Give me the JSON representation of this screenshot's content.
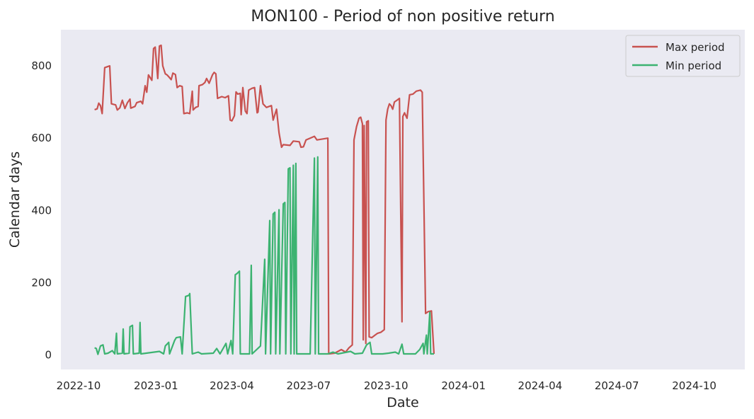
{
  "chart_data": {
    "type": "line",
    "title": "MON100 - Period of non positive return",
    "xlabel": "Date",
    "ylabel": "Calendar days",
    "x_ticks": [
      "2022-10",
      "2023-01",
      "2023-04",
      "2023-07",
      "2023-10",
      "2024-01",
      "2024-04",
      "2024-07",
      "2024-10"
    ],
    "y_ticks": [
      "0",
      "200",
      "400",
      "600",
      "800"
    ],
    "xlim": [
      "2022-09-10",
      "2024-11-30"
    ],
    "ylim": [
      -40,
      900
    ],
    "grid": false,
    "legend": "top-right",
    "series": [
      {
        "name": "Max period",
        "color": "#c85250",
        "points": [
          [
            "2022-10-20",
            679
          ],
          [
            "2022-10-23",
            681
          ],
          [
            "2022-10-25",
            697
          ],
          [
            "2022-10-27",
            690
          ],
          [
            "2022-10-29",
            668
          ],
          [
            "2022-11-01",
            795
          ],
          [
            "2022-11-07",
            800
          ],
          [
            "2022-11-09",
            695
          ],
          [
            "2022-11-14",
            692
          ],
          [
            "2022-11-16",
            678
          ],
          [
            "2022-11-19",
            684
          ],
          [
            "2022-11-22",
            705
          ],
          [
            "2022-11-25",
            682
          ],
          [
            "2022-11-28",
            698
          ],
          [
            "2022-12-01",
            708
          ],
          [
            "2022-12-02",
            683
          ],
          [
            "2022-12-07",
            688
          ],
          [
            "2022-12-09",
            698
          ],
          [
            "2022-12-14",
            702
          ],
          [
            "2022-12-16",
            695
          ],
          [
            "2022-12-19",
            745
          ],
          [
            "2022-12-21",
            727
          ],
          [
            "2022-12-23",
            775
          ],
          [
            "2022-12-27",
            760
          ],
          [
            "2022-12-29",
            848
          ],
          [
            "2022-12-31",
            852
          ],
          [
            "2023-01-03",
            765
          ],
          [
            "2023-01-05",
            855
          ],
          [
            "2023-01-07",
            857
          ],
          [
            "2023-01-09",
            800
          ],
          [
            "2023-01-12",
            778
          ],
          [
            "2023-01-14",
            775
          ],
          [
            "2023-01-16",
            770
          ],
          [
            "2023-01-19",
            762
          ],
          [
            "2023-01-21",
            780
          ],
          [
            "2023-01-24",
            776
          ],
          [
            "2023-01-26",
            740
          ],
          [
            "2023-01-29",
            745
          ],
          [
            "2023-02-01",
            743
          ],
          [
            "2023-02-03",
            668
          ],
          [
            "2023-02-07",
            670
          ],
          [
            "2023-02-10",
            668
          ],
          [
            "2023-02-13",
            730
          ],
          [
            "2023-02-14",
            678
          ],
          [
            "2023-02-17",
            685
          ],
          [
            "2023-02-20",
            688
          ],
          [
            "2023-02-21",
            745
          ],
          [
            "2023-02-25",
            748
          ],
          [
            "2023-02-28",
            754
          ],
          [
            "2023-03-02",
            765
          ],
          [
            "2023-03-05",
            752
          ],
          [
            "2023-03-09",
            775
          ],
          [
            "2023-03-11",
            782
          ],
          [
            "2023-03-13",
            778
          ],
          [
            "2023-03-15",
            710
          ],
          [
            "2023-03-20",
            715
          ],
          [
            "2023-03-24",
            712
          ],
          [
            "2023-03-28",
            717
          ],
          [
            "2023-03-30",
            650
          ],
          [
            "2023-04-01",
            648
          ],
          [
            "2023-04-04",
            662
          ],
          [
            "2023-04-06",
            728
          ],
          [
            "2023-04-08",
            722
          ],
          [
            "2023-04-11",
            724
          ],
          [
            "2023-04-12",
            665
          ],
          [
            "2023-04-14",
            740
          ],
          [
            "2023-04-17",
            675
          ],
          [
            "2023-04-19",
            668
          ],
          [
            "2023-04-21",
            733
          ],
          [
            "2023-04-25",
            738
          ],
          [
            "2023-04-28",
            740
          ],
          [
            "2023-05-01",
            670
          ],
          [
            "2023-05-02",
            672
          ],
          [
            "2023-05-05",
            745
          ],
          [
            "2023-05-08",
            695
          ],
          [
            "2023-05-12",
            685
          ],
          [
            "2023-05-18",
            690
          ],
          [
            "2023-05-20",
            650
          ],
          [
            "2023-05-24",
            680
          ],
          [
            "2023-05-27",
            615
          ],
          [
            "2023-05-30",
            575
          ],
          [
            "2023-06-01",
            582
          ],
          [
            "2023-06-09",
            580
          ],
          [
            "2023-06-13",
            592
          ],
          [
            "2023-06-20",
            590
          ],
          [
            "2023-06-22",
            575
          ],
          [
            "2023-06-25",
            576
          ],
          [
            "2023-06-28",
            595
          ],
          [
            "2023-07-08",
            605
          ],
          [
            "2023-07-11",
            595
          ],
          [
            "2023-07-24",
            600
          ],
          [
            "2023-07-25",
            3
          ],
          [
            "2023-08-01",
            5
          ],
          [
            "2023-08-05",
            10
          ],
          [
            "2023-08-09",
            15
          ],
          [
            "2023-08-14",
            8
          ],
          [
            "2023-08-18",
            20
          ],
          [
            "2023-08-22",
            28
          ],
          [
            "2023-08-24",
            595
          ],
          [
            "2023-08-27",
            632
          ],
          [
            "2023-08-30",
            655
          ],
          [
            "2023-09-01",
            658
          ],
          [
            "2023-09-03",
            640
          ],
          [
            "2023-09-04",
            42
          ],
          [
            "2023-09-05",
            635
          ],
          [
            "2023-09-07",
            32
          ],
          [
            "2023-09-08",
            645
          ],
          [
            "2023-09-10",
            648
          ],
          [
            "2023-09-11",
            50
          ],
          [
            "2023-09-14",
            48
          ],
          [
            "2023-09-18",
            55
          ],
          [
            "2023-09-21",
            60
          ],
          [
            "2023-09-25",
            63
          ],
          [
            "2023-09-29",
            70
          ],
          [
            "2023-10-01",
            650
          ],
          [
            "2023-10-03",
            680
          ],
          [
            "2023-10-05",
            695
          ],
          [
            "2023-10-07",
            690
          ],
          [
            "2023-10-09",
            680
          ],
          [
            "2023-10-11",
            700
          ],
          [
            "2023-10-14",
            705
          ],
          [
            "2023-10-17",
            710
          ],
          [
            "2023-10-20",
            92
          ],
          [
            "2023-10-21",
            660
          ],
          [
            "2023-10-23",
            670
          ],
          [
            "2023-10-26",
            655
          ],
          [
            "2023-10-29",
            720
          ],
          [
            "2023-11-02",
            722
          ],
          [
            "2023-11-06",
            730
          ],
          [
            "2023-11-11",
            733
          ],
          [
            "2023-11-13",
            727
          ],
          [
            "2023-11-17",
            115
          ],
          [
            "2023-11-20",
            120
          ],
          [
            "2023-11-24",
            122
          ],
          [
            "2023-11-27",
            3
          ]
        ]
      },
      {
        "name": "Min period",
        "color": "#3cb371",
        "points": [
          [
            "2022-10-20",
            20
          ],
          [
            "2022-10-22",
            18
          ],
          [
            "2022-10-24",
            2
          ],
          [
            "2022-10-27",
            25
          ],
          [
            "2022-10-30",
            28
          ],
          [
            "2022-11-01",
            3
          ],
          [
            "2022-11-05",
            5
          ],
          [
            "2022-11-10",
            12
          ],
          [
            "2022-11-13",
            3
          ],
          [
            "2022-11-15",
            60
          ],
          [
            "2022-11-16",
            3
          ],
          [
            "2022-11-22",
            5
          ],
          [
            "2022-11-23",
            72
          ],
          [
            "2022-11-24",
            3
          ],
          [
            "2022-11-30",
            5
          ],
          [
            "2022-12-01",
            78
          ],
          [
            "2022-12-04",
            82
          ],
          [
            "2022-12-05",
            3
          ],
          [
            "2022-12-12",
            5
          ],
          [
            "2022-12-13",
            90
          ],
          [
            "2022-12-14",
            3
          ],
          [
            "2023-01-05",
            10
          ],
          [
            "2023-01-10",
            3
          ],
          [
            "2023-01-12",
            25
          ],
          [
            "2023-01-16",
            35
          ],
          [
            "2023-01-17",
            3
          ],
          [
            "2023-01-23",
            40
          ],
          [
            "2023-01-25",
            48
          ],
          [
            "2023-01-30",
            50
          ],
          [
            "2023-02-01",
            3
          ],
          [
            "2023-02-05",
            162
          ],
          [
            "2023-02-09",
            165
          ],
          [
            "2023-02-10",
            170
          ],
          [
            "2023-02-13",
            3
          ],
          [
            "2023-02-20",
            8
          ],
          [
            "2023-02-24",
            3
          ],
          [
            "2023-03-10",
            5
          ],
          [
            "2023-03-14",
            18
          ],
          [
            "2023-03-18",
            3
          ],
          [
            "2023-03-25",
            32
          ],
          [
            "2023-03-27",
            3
          ],
          [
            "2023-03-31",
            40
          ],
          [
            "2023-04-02",
            3
          ],
          [
            "2023-04-05",
            222
          ],
          [
            "2023-04-07",
            225
          ],
          [
            "2023-04-10",
            232
          ],
          [
            "2023-04-11",
            3
          ],
          [
            "2023-04-22",
            3
          ],
          [
            "2023-04-24",
            248
          ],
          [
            "2023-04-25",
            3
          ],
          [
            "2023-05-05",
            25
          ],
          [
            "2023-05-10",
            265
          ],
          [
            "2023-05-11",
            3
          ],
          [
            "2023-05-16",
            372
          ],
          [
            "2023-05-17",
            3
          ],
          [
            "2023-05-20",
            390
          ],
          [
            "2023-05-22",
            395
          ],
          [
            "2023-05-23",
            3
          ],
          [
            "2023-05-27",
            402
          ],
          [
            "2023-05-28",
            3
          ],
          [
            "2023-06-01",
            418
          ],
          [
            "2023-06-03",
            422
          ],
          [
            "2023-06-04",
            3
          ],
          [
            "2023-06-07",
            515
          ],
          [
            "2023-06-09",
            518
          ],
          [
            "2023-06-10",
            3
          ],
          [
            "2023-06-13",
            525
          ],
          [
            "2023-06-14",
            3
          ],
          [
            "2023-06-16",
            530
          ],
          [
            "2023-06-17",
            3
          ],
          [
            "2023-07-03",
            3
          ],
          [
            "2023-07-08",
            545
          ],
          [
            "2023-07-09",
            3
          ],
          [
            "2023-07-12",
            548
          ],
          [
            "2023-07-13",
            3
          ],
          [
            "2023-07-24",
            3
          ],
          [
            "2023-07-30",
            8
          ],
          [
            "2023-08-05",
            3
          ],
          [
            "2023-08-20",
            10
          ],
          [
            "2023-08-25",
            3
          ],
          [
            "2023-09-03",
            5
          ],
          [
            "2023-09-08",
            28
          ],
          [
            "2023-09-12",
            35
          ],
          [
            "2023-09-14",
            3
          ],
          [
            "2023-09-27",
            3
          ],
          [
            "2023-10-04",
            5
          ],
          [
            "2023-10-12",
            8
          ],
          [
            "2023-10-16",
            3
          ],
          [
            "2023-10-20",
            30
          ],
          [
            "2023-10-22",
            3
          ],
          [
            "2023-11-05",
            3
          ],
          [
            "2023-11-10",
            15
          ],
          [
            "2023-11-14",
            32
          ],
          [
            "2023-11-15",
            3
          ],
          [
            "2023-11-18",
            55
          ],
          [
            "2023-11-19",
            3
          ],
          [
            "2023-11-22",
            118
          ],
          [
            "2023-11-23",
            3
          ],
          [
            "2023-11-27",
            3
          ]
        ]
      }
    ]
  }
}
